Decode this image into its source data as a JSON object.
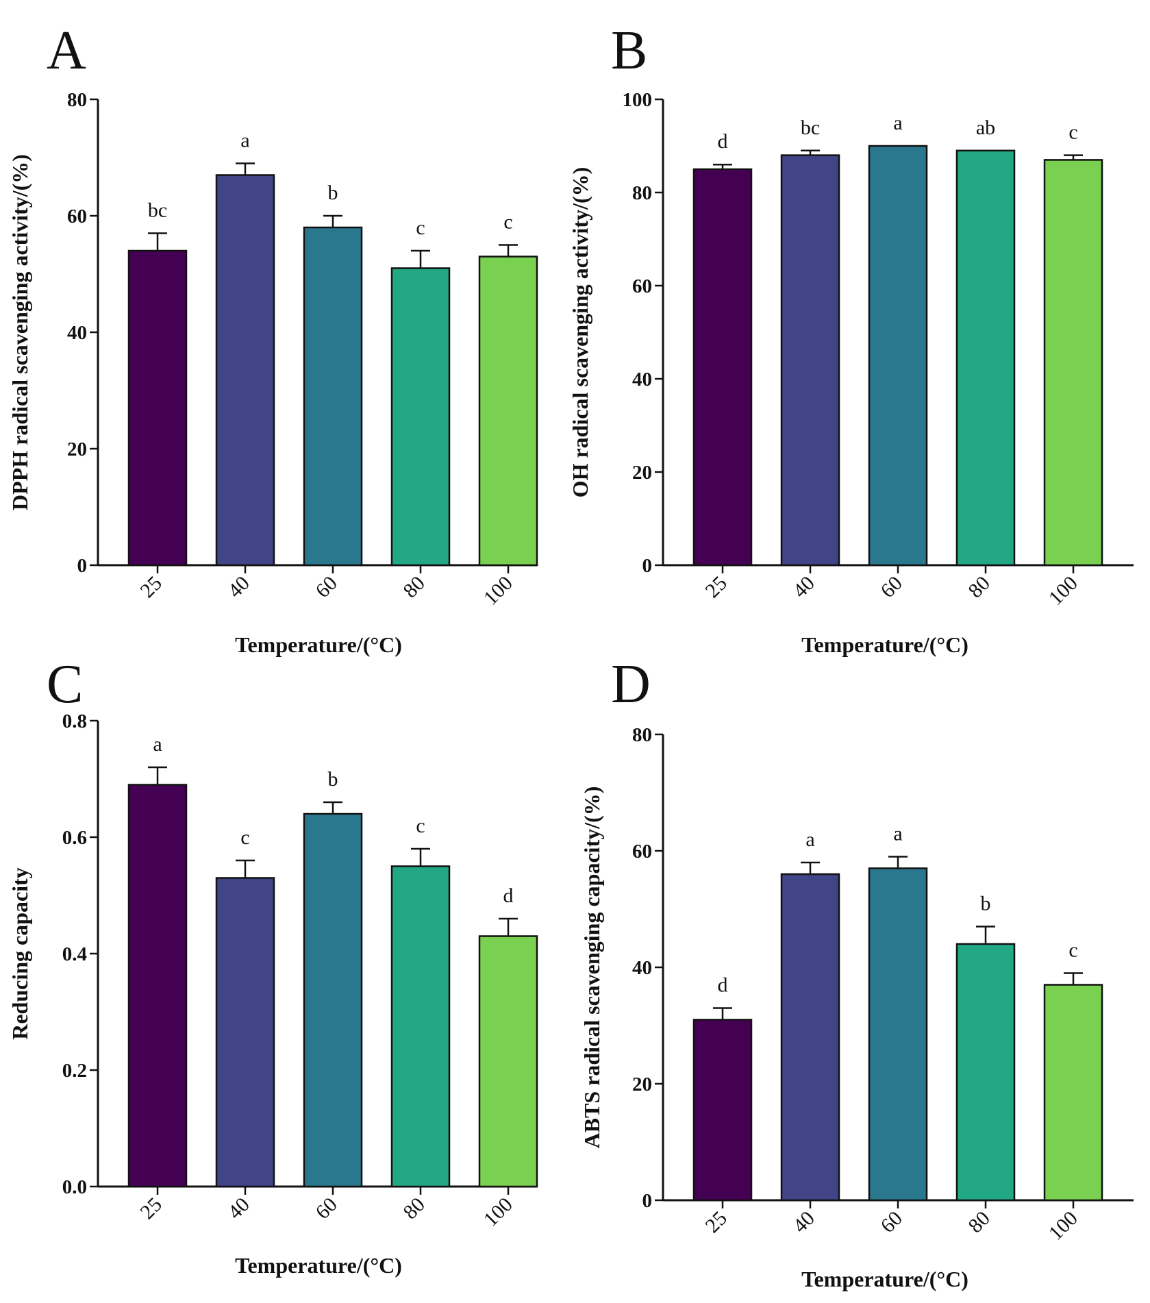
{
  "chart_data": [
    {
      "type": "bar",
      "panel": "A",
      "categories": [
        "25",
        "40",
        "60",
        "80",
        "100"
      ],
      "values": [
        54,
        67,
        58,
        51,
        53
      ],
      "errors": [
        3,
        2,
        2,
        3,
        2
      ],
      "significance": [
        "bc",
        "a",
        "b",
        "c",
        "c"
      ],
      "xlabel": "Temperature/(°C)",
      "ylabel": "DPPH radical scavenging activity/(%)",
      "ylim": [
        0,
        80
      ],
      "yticks": [
        0,
        20,
        40,
        60,
        80
      ],
      "ytick_labels": [
        "0",
        "20",
        "40",
        "60",
        "80"
      ],
      "colors": [
        "#440154",
        "#414487",
        "#2a788e",
        "#22a884",
        "#7ad151"
      ]
    },
    {
      "type": "bar",
      "panel": "B",
      "categories": [
        "25",
        "40",
        "60",
        "80",
        "100"
      ],
      "values": [
        85,
        88,
        90,
        89,
        87
      ],
      "errors": [
        1,
        1,
        0,
        0,
        1
      ],
      "significance": [
        "d",
        "bc",
        "a",
        "ab",
        "c"
      ],
      "xlabel": "Temperature/(°C)",
      "ylabel": "OH radical scavenging activity/(%)",
      "ylim": [
        0,
        100
      ],
      "yticks": [
        0,
        20,
        40,
        60,
        80,
        100
      ],
      "ytick_labels": [
        "0",
        "20",
        "40",
        "60",
        "80",
        "100"
      ],
      "colors": [
        "#440154",
        "#414487",
        "#2a788e",
        "#22a884",
        "#7ad151"
      ]
    },
    {
      "type": "bar",
      "panel": "C",
      "categories": [
        "25",
        "40",
        "60",
        "80",
        "100"
      ],
      "values": [
        0.69,
        0.53,
        0.64,
        0.55,
        0.43
      ],
      "errors": [
        0.03,
        0.03,
        0.02,
        0.03,
        0.03
      ],
      "significance": [
        "a",
        "c",
        "b",
        "c",
        "d"
      ],
      "xlabel": "Temperature/(°C)",
      "ylabel": "Reducing capacity",
      "ylim": [
        0,
        0.8
      ],
      "yticks": [
        0,
        0.2,
        0.4,
        0.6,
        0.8
      ],
      "ytick_labels": [
        "0.0",
        "0.2",
        "0.4",
        "0.6",
        "0.8"
      ],
      "colors": [
        "#440154",
        "#414487",
        "#2a788e",
        "#22a884",
        "#7ad151"
      ]
    },
    {
      "type": "bar",
      "panel": "D",
      "categories": [
        "25",
        "40",
        "60",
        "80",
        "100"
      ],
      "values": [
        31,
        56,
        57,
        44,
        37
      ],
      "errors": [
        2,
        2,
        2,
        3,
        2
      ],
      "significance": [
        "d",
        "a",
        "a",
        "b",
        "c"
      ],
      "xlabel": "Temperature/(°C)",
      "ylabel": "ABTS radical scavenging  capacity/(%)",
      "ylim": [
        0,
        80
      ],
      "yticks": [
        0,
        20,
        40,
        60,
        80
      ],
      "ytick_labels": [
        "0",
        "20",
        "40",
        "60",
        "80"
      ],
      "colors": [
        "#440154",
        "#414487",
        "#2a788e",
        "#22a884",
        "#7ad151"
      ]
    }
  ]
}
